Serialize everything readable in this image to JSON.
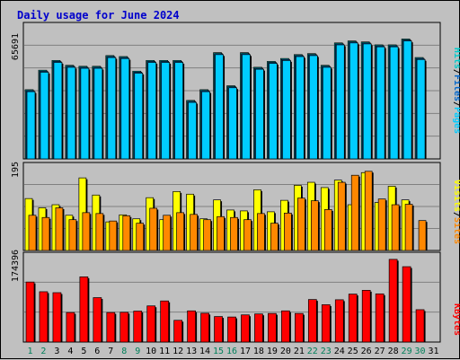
{
  "title": "Daily usage for June 2024",
  "days": [
    "1",
    "2",
    "3",
    "4",
    "5",
    "6",
    "7",
    "8",
    "9",
    "10",
    "11",
    "12",
    "13",
    "14",
    "15",
    "16",
    "17",
    "18",
    "19",
    "20",
    "21",
    "22",
    "23",
    "24",
    "25",
    "26",
    "27",
    "28",
    "29",
    "30",
    "31"
  ],
  "weekend_days": [
    1,
    2,
    8,
    9,
    15,
    16,
    22,
    23,
    29,
    30
  ],
  "colors": {
    "background": "#c0c0c0",
    "title": "#0000cc",
    "hits": "#00cccc",
    "files": "#0066cc",
    "pages": "#00ccff",
    "visits": "#ffff00",
    "sites": "#ff8800",
    "kbytes": "#ff0000",
    "weekend_label": "#00805a",
    "weekday_label": "#000000"
  },
  "labels": {
    "hits": "Hits",
    "files": "Files",
    "pages": "Pages",
    "visits": "Visits",
    "sites": "Sites",
    "kbytes": "KBytes",
    "sep": "/"
  },
  "chart_data": [
    {
      "type": "bar",
      "name": "hits-files-pages",
      "ytick_label": "65691",
      "ylim": [
        0,
        70000
      ],
      "series": [
        {
          "name": "Hits",
          "values": [
            35500,
            45500,
            50500,
            48000,
            47500,
            47500,
            53000,
            52500,
            45000,
            50500,
            50500,
            50500,
            30000,
            35500,
            54500,
            37500,
            54500,
            47000,
            50000,
            51500,
            53500,
            54000,
            48000,
            59500,
            60500,
            60000,
            58500,
            58500,
            61500,
            52000,
            0
          ]
        },
        {
          "name": "Files",
          "values": [
            35000,
            45000,
            50000,
            47500,
            47000,
            47000,
            52500,
            52000,
            44500,
            50000,
            50000,
            50000,
            29500,
            35000,
            54000,
            37000,
            54000,
            46500,
            49500,
            51000,
            53000,
            53500,
            47500,
            59000,
            60000,
            59500,
            58000,
            58000,
            61000,
            51500,
            0
          ]
        },
        {
          "name": "Pages",
          "values": [
            34500,
            44500,
            49500,
            47000,
            46500,
            46500,
            52000,
            51500,
            44000,
            49500,
            49500,
            49500,
            29000,
            34500,
            53500,
            36500,
            53500,
            46000,
            49000,
            50500,
            52500,
            53000,
            47000,
            58500,
            59500,
            59000,
            57500,
            57500,
            60500,
            51000,
            0
          ]
        }
      ]
    },
    {
      "type": "bar",
      "name": "visits-sites",
      "ytick_label": "195",
      "ylim": [
        0,
        200
      ],
      "series": [
        {
          "name": "Visits",
          "values": [
            118,
            97,
            104,
            80,
            165,
            126,
            65,
            81,
            72,
            120,
            70,
            134,
            128,
            72,
            115,
            92,
            90,
            138,
            88,
            114,
            148,
            155,
            143,
            160,
            104,
            177,
            109,
            146,
            115,
            0,
            0
          ]
        },
        {
          "name": "Sites",
          "values": [
            80,
            75,
            97,
            70,
            86,
            84,
            67,
            79,
            62,
            96,
            80,
            86,
            82,
            70,
            77,
            75,
            70,
            84,
            62,
            85,
            119,
            113,
            93,
            155,
            171,
            180,
            117,
            104,
            105,
            68,
            0
          ]
        }
      ]
    },
    {
      "type": "bar",
      "name": "kbytes",
      "ytick_label": "174396",
      "ylim": [
        0,
        190000
      ],
      "series": [
        {
          "name": "KBytes",
          "values": [
            127000,
            106500,
            104500,
            62500,
            138000,
            94000,
            62500,
            63000,
            65500,
            76500,
            87000,
            46000,
            66000,
            61000,
            54000,
            53000,
            57500,
            59500,
            60500,
            66000,
            60500,
            90000,
            79000,
            89500,
            101500,
            109500,
            102000,
            175000,
            159500,
            68500,
            0
          ]
        }
      ]
    }
  ]
}
